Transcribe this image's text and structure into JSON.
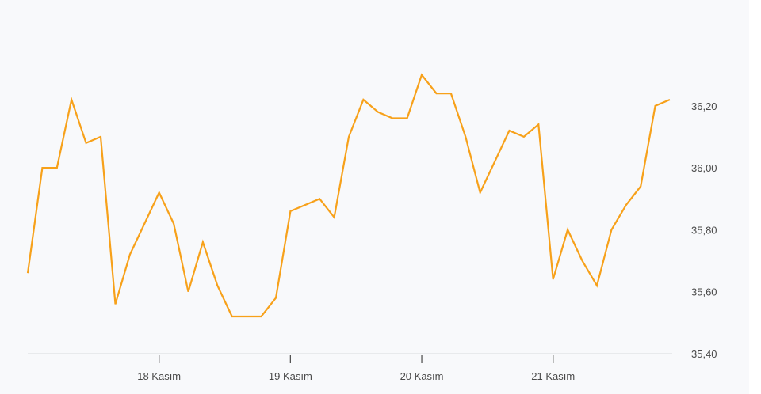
{
  "chart_data": {
    "type": "line",
    "title": "",
    "xlabel": "",
    "ylabel": "",
    "grid": false,
    "line_color": "#f7a11a",
    "x_index": [
      0,
      1,
      2,
      3,
      4,
      5,
      6,
      7,
      8,
      9,
      10,
      11,
      12,
      13,
      14,
      15,
      16,
      17,
      18,
      19,
      20,
      21,
      22,
      23,
      24,
      25,
      26,
      27,
      28,
      29,
      30,
      31,
      32,
      33,
      34,
      35,
      36,
      37,
      38,
      39,
      40,
      41,
      42,
      43,
      44
    ],
    "values": [
      35.66,
      36.0,
      36.0,
      36.22,
      36.08,
      36.1,
      35.56,
      35.72,
      35.82,
      35.92,
      35.82,
      35.6,
      35.76,
      35.62,
      35.52,
      35.52,
      35.52,
      35.58,
      35.86,
      35.88,
      35.9,
      35.84,
      36.1,
      36.22,
      36.18,
      36.16,
      36.16,
      36.3,
      36.24,
      36.24,
      36.1,
      35.92,
      36.02,
      36.12,
      36.1,
      36.14,
      35.64,
      35.8,
      35.7,
      35.62,
      35.8,
      35.88,
      35.94,
      36.2,
      36.22
    ],
    "x_ticks": [
      {
        "index": 9,
        "label": "18 Kasım"
      },
      {
        "index": 18,
        "label": "19 Kasım"
      },
      {
        "index": 27,
        "label": "20 Kasım"
      },
      {
        "index": 36,
        "label": "21 Kasım"
      }
    ],
    "y_ticks": [
      {
        "value": 35.4,
        "label": "35,40"
      },
      {
        "value": 35.6,
        "label": "35,60"
      },
      {
        "value": 35.8,
        "label": "35,80"
      },
      {
        "value": 36.0,
        "label": "36,00"
      },
      {
        "value": 36.2,
        "label": "36,20"
      }
    ],
    "ylim": [
      35.4,
      36.3
    ],
    "y_axis_position": "right"
  }
}
